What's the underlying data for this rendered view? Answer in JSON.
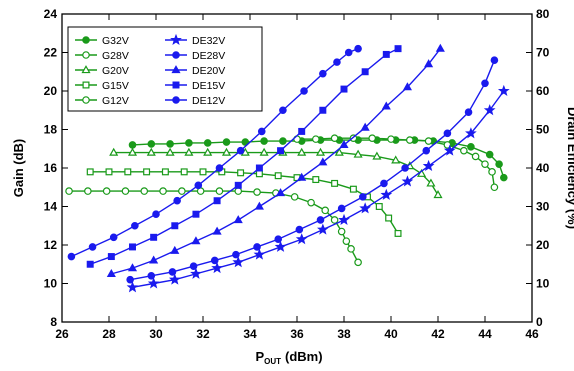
{
  "chart_data": {
    "type": "line",
    "xlabel": "P",
    "xlabel_sub": "OUT",
    "xlabel_unit": "(dBm)",
    "ylabel": "Gain (dB)",
    "y2label": "Drain Efficiency (%)",
    "xlim": [
      26,
      46
    ],
    "ylim": [
      8,
      24
    ],
    "y2lim": [
      0,
      80
    ],
    "x_ticks": [
      26,
      28,
      30,
      32,
      34,
      36,
      38,
      40,
      42,
      44,
      46
    ],
    "y_ticks": [
      8,
      10,
      12,
      14,
      16,
      18,
      20,
      22,
      24
    ],
    "y2_ticks": [
      0,
      10,
      20,
      30,
      40,
      50,
      60,
      70,
      80
    ],
    "grid": false,
    "legend_position": "top-left",
    "colors": {
      "gain": "#1a9a1a",
      "efficiency": "#1a1aee"
    },
    "series": [
      {
        "name": "G32V",
        "axis": "left",
        "marker": "filled-circle",
        "color": "#1a9a1a",
        "x": [
          29.0,
          29.8,
          30.6,
          31.4,
          32.2,
          33.0,
          33.8,
          34.6,
          35.4,
          36.2,
          37.0,
          37.8,
          38.6,
          39.4,
          40.2,
          41.0,
          41.8,
          42.6,
          43.4,
          44.2,
          44.6,
          44.8
        ],
        "y": [
          17.2,
          17.25,
          17.25,
          17.3,
          17.3,
          17.35,
          17.35,
          17.4,
          17.4,
          17.4,
          17.45,
          17.45,
          17.45,
          17.45,
          17.45,
          17.45,
          17.4,
          17.3,
          17.1,
          16.7,
          16.2,
          15.5
        ]
      },
      {
        "name": "G28V",
        "axis": "left",
        "marker": "open-circle",
        "color": "#1a9a1a",
        "x": [
          36.0,
          36.8,
          37.6,
          38.4,
          39.2,
          40.0,
          40.8,
          41.6,
          42.4,
          43.1,
          43.6,
          44.0,
          44.3,
          44.4
        ],
        "y": [
          17.5,
          17.5,
          17.55,
          17.55,
          17.55,
          17.5,
          17.45,
          17.4,
          17.2,
          16.9,
          16.6,
          16.2,
          15.8,
          15.0
        ]
      },
      {
        "name": "G20V",
        "axis": "left",
        "marker": "open-triangle",
        "color": "#1a9a1a",
        "x": [
          28.2,
          29.0,
          29.8,
          30.6,
          31.4,
          32.2,
          33.0,
          33.8,
          34.6,
          35.4,
          36.2,
          37.0,
          37.8,
          38.6,
          39.4,
          40.2,
          40.8,
          41.3,
          41.7,
          42.0
        ],
        "y": [
          16.8,
          16.8,
          16.8,
          16.8,
          16.8,
          16.8,
          16.8,
          16.8,
          16.8,
          16.8,
          16.8,
          16.8,
          16.8,
          16.7,
          16.6,
          16.4,
          16.1,
          15.7,
          15.2,
          14.6
        ]
      },
      {
        "name": "G15V",
        "axis": "left",
        "marker": "open-square",
        "color": "#1a9a1a",
        "x": [
          27.2,
          28.0,
          28.8,
          29.6,
          30.4,
          31.2,
          32.0,
          32.8,
          33.6,
          34.4,
          35.2,
          36.0,
          36.8,
          37.6,
          38.4,
          39.0,
          39.5,
          39.9,
          40.3
        ],
        "y": [
          15.8,
          15.8,
          15.8,
          15.8,
          15.8,
          15.8,
          15.8,
          15.8,
          15.75,
          15.7,
          15.6,
          15.5,
          15.4,
          15.2,
          14.9,
          14.5,
          14.0,
          13.4,
          12.6
        ]
      },
      {
        "name": "G12V",
        "axis": "left",
        "marker": "open-circle",
        "color": "#1a9a1a",
        "x": [
          26.3,
          27.1,
          27.9,
          28.7,
          29.5,
          30.3,
          31.1,
          31.9,
          32.7,
          33.5,
          34.3,
          35.1,
          35.9,
          36.6,
          37.2,
          37.6,
          37.9,
          38.1,
          38.3,
          38.6
        ],
        "y": [
          14.8,
          14.8,
          14.8,
          14.8,
          14.8,
          14.8,
          14.8,
          14.8,
          14.8,
          14.8,
          14.75,
          14.7,
          14.5,
          14.2,
          13.8,
          13.3,
          12.7,
          12.2,
          11.8,
          11.1
        ]
      },
      {
        "name": "DE32V",
        "axis": "right",
        "marker": "filled-star",
        "color": "#1a1aee",
        "x": [
          29.0,
          29.9,
          30.8,
          31.7,
          32.6,
          33.5,
          34.4,
          35.3,
          36.2,
          37.1,
          38.0,
          38.9,
          39.8,
          40.7,
          41.6,
          42.5,
          43.4,
          44.2,
          44.8
        ],
        "y": [
          9.0,
          10.0,
          11.0,
          12.5,
          14.0,
          15.5,
          17.5,
          19.5,
          21.5,
          24.0,
          26.5,
          29.5,
          33.0,
          36.5,
          40.5,
          44.5,
          49.0,
          55.0,
          60.0
        ]
      },
      {
        "name": "DE28V",
        "axis": "right",
        "marker": "filled-circle",
        "color": "#1a1aee",
        "x": [
          28.9,
          29.8,
          30.7,
          31.6,
          32.5,
          33.4,
          34.3,
          35.2,
          36.1,
          37.0,
          37.9,
          38.8,
          39.7,
          40.6,
          41.5,
          42.4,
          43.3,
          44.0,
          44.4
        ],
        "y": [
          11.0,
          12.0,
          13.0,
          14.5,
          16.0,
          17.5,
          19.5,
          21.5,
          24.0,
          26.5,
          29.5,
          32.5,
          36.0,
          40.0,
          44.5,
          49.0,
          54.5,
          62.0,
          68.0
        ]
      },
      {
        "name": "DE20V",
        "axis": "right",
        "marker": "filled-triangle",
        "color": "#1a1aee",
        "x": [
          28.1,
          29.0,
          29.9,
          30.8,
          31.7,
          32.6,
          33.5,
          34.4,
          35.3,
          36.2,
          37.1,
          38.0,
          38.9,
          39.8,
          40.7,
          41.6,
          42.1
        ],
        "y": [
          12.5,
          14.0,
          16.0,
          18.5,
          21.0,
          23.5,
          26.5,
          30.0,
          33.5,
          37.5,
          41.5,
          46.0,
          50.5,
          56.0,
          61.0,
          67.0,
          71.0
        ]
      },
      {
        "name": "DE15V",
        "axis": "right",
        "marker": "filled-square",
        "color": "#1a1aee",
        "x": [
          27.2,
          28.1,
          29.0,
          29.9,
          30.8,
          31.7,
          32.6,
          33.5,
          34.4,
          35.3,
          36.2,
          37.1,
          38.0,
          38.9,
          39.8,
          40.3
        ],
        "y": [
          15.0,
          17.0,
          19.5,
          22.0,
          25.0,
          28.0,
          31.5,
          35.5,
          40.0,
          44.5,
          49.5,
          55.0,
          60.5,
          65.0,
          69.5,
          71.0
        ]
      },
      {
        "name": "DE12V",
        "axis": "right",
        "marker": "filled-circle",
        "color": "#1a1aee",
        "x": [
          26.4,
          27.3,
          28.2,
          29.1,
          30.0,
          30.9,
          31.8,
          32.7,
          33.6,
          34.5,
          35.4,
          36.3,
          37.1,
          37.7,
          38.2,
          38.6
        ],
        "y": [
          17.0,
          19.5,
          22.0,
          25.0,
          28.0,
          31.5,
          35.5,
          40.0,
          44.5,
          49.5,
          55.0,
          60.0,
          64.5,
          67.5,
          70.0,
          71.0
        ]
      }
    ]
  }
}
